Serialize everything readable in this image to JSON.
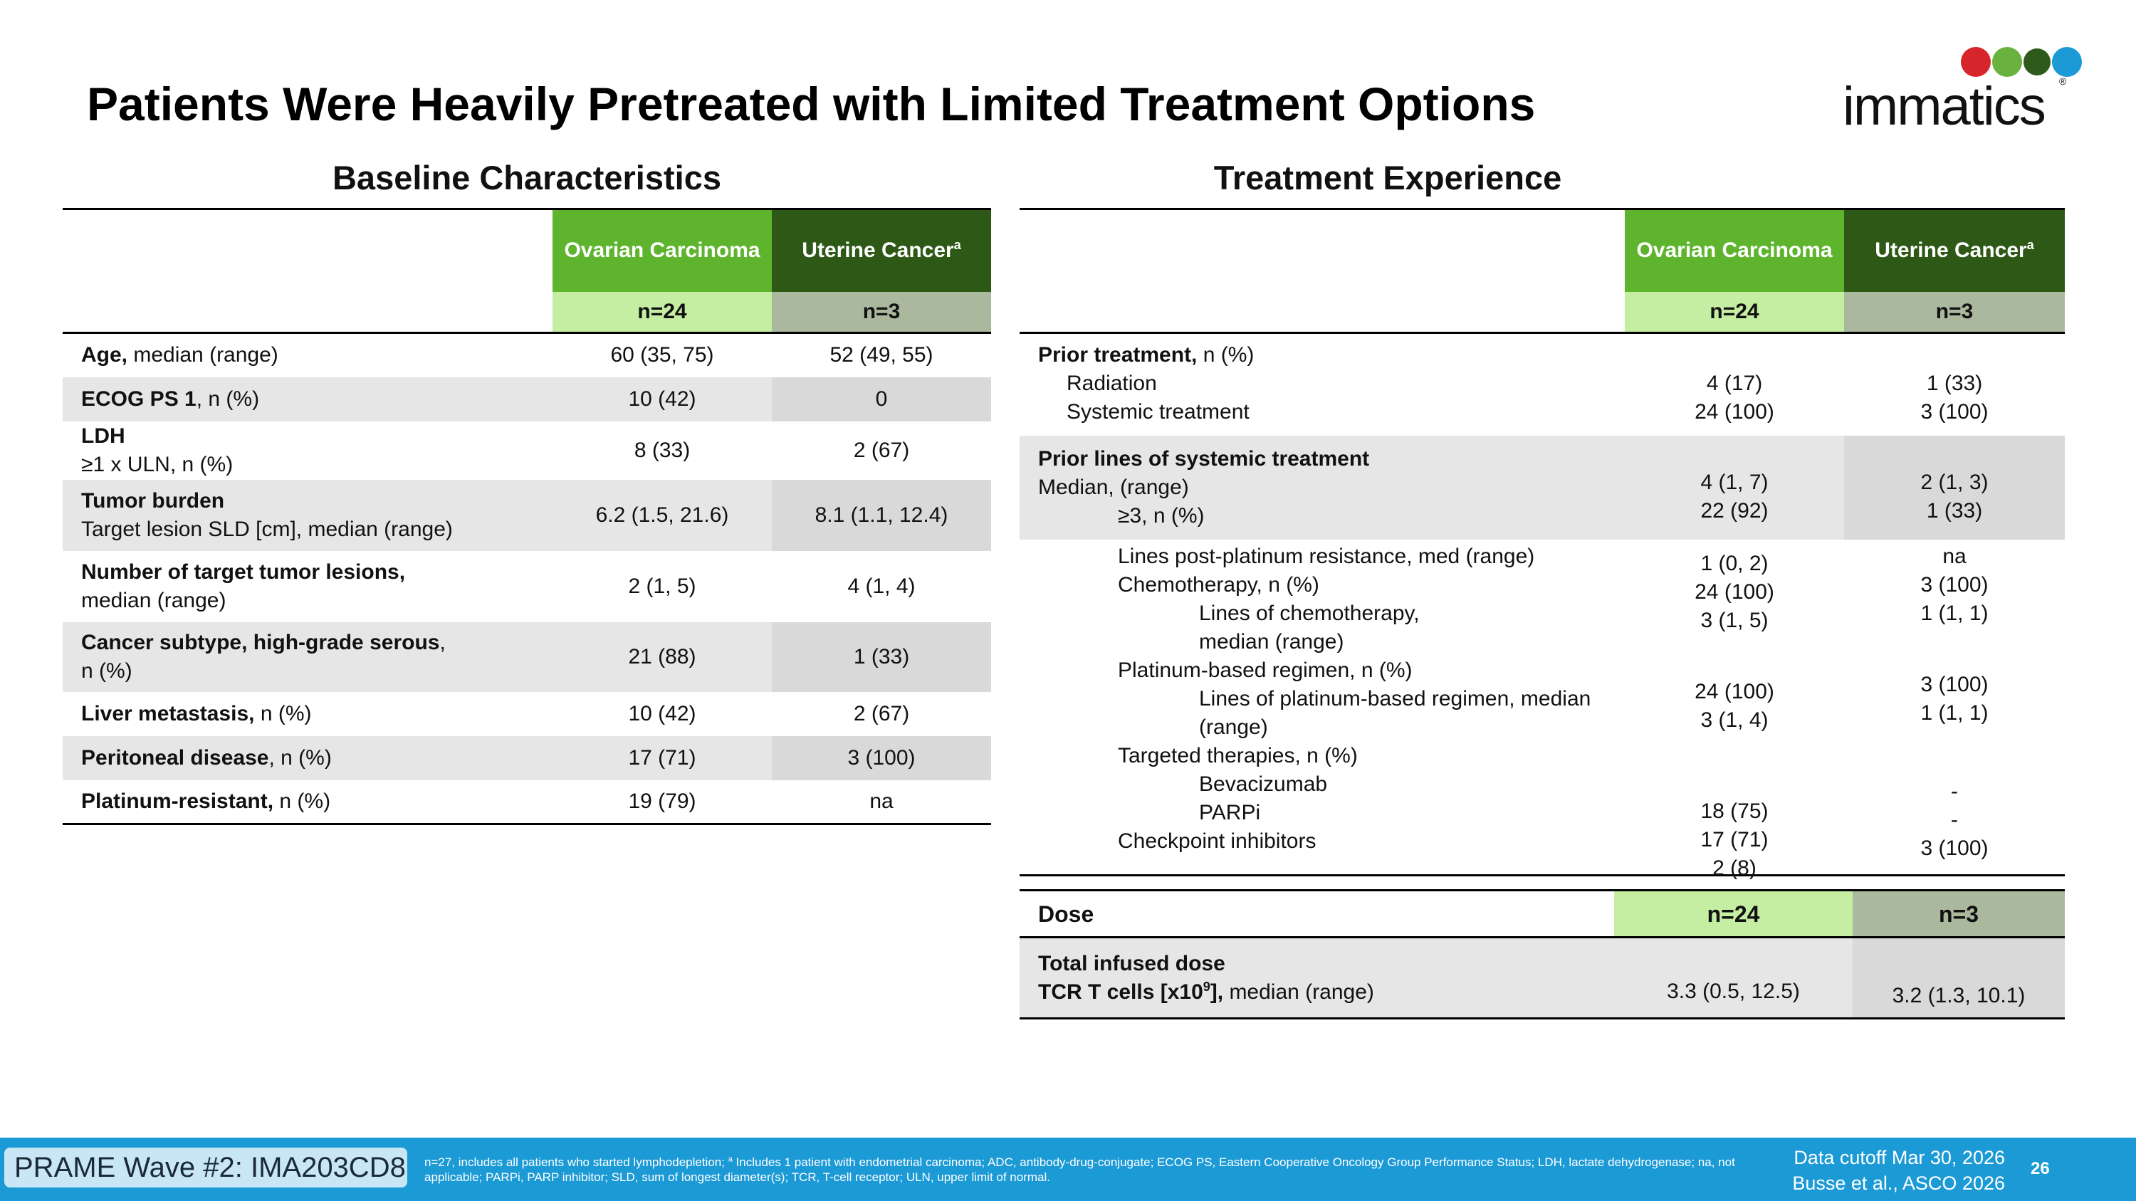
{
  "slide": {
    "title": "Patients Were Heavily Pretreated with Limited Treatment Options",
    "logo_text": "immatics",
    "logo_reg": "®",
    "logo_dot_colors": [
      "#d7262b",
      "#68b23d",
      "#2d5a1b",
      "#1c9ad6"
    ]
  },
  "baseline": {
    "title": "Baseline Characteristics",
    "col1_header": "Ovarian Carcinoma",
    "col2_header": "Uterine Cancer",
    "col2_sup": "a",
    "col1_n": "n=24",
    "col2_n": "n=3",
    "rows": [
      {
        "label": "Age,",
        "label_rest": " median (range)",
        "ov": "60 (35, 75)",
        "ut": "52 (49, 55)"
      },
      {
        "label": "ECOG PS 1",
        "label_rest": ", n (%)",
        "ov": "10 (42)",
        "ut": "0"
      },
      {
        "label": "LDH",
        "label_line2": "≥1 x ULN, n (%)",
        "ov": "8 (33)",
        "ut": "2 (67)"
      },
      {
        "label": "Tumor burden",
        "label_line2": "Target lesion SLD [cm], median (range)",
        "ov": "6.2 (1.5, 21.6)",
        "ut": "8.1 (1.1, 12.4)"
      },
      {
        "label": "Number of target tumor lesions,",
        "label_line2": "median (range)",
        "ov": "2 (1, 5)",
        "ut": "4 (1, 4)"
      },
      {
        "label": "Cancer subtype, high-grade serous",
        "label_rest": ",",
        "label_line2": "n (%)",
        "ov": "21 (88)",
        "ut": "1 (33)"
      },
      {
        "label": "Liver metastasis,",
        "label_rest": " n (%)",
        "ov": "10 (42)",
        "ut": "2 (67)"
      },
      {
        "label": "Peritoneal disease",
        "label_rest": ", n (%)",
        "ov": "17 (71)",
        "ut": "3 (100)"
      },
      {
        "label": "Platinum-resistant,",
        "label_rest": " n (%)",
        "ov": "19 (79)",
        "ut": "na"
      }
    ]
  },
  "treatment": {
    "title": "Treatment Experience",
    "col1_header": "Ovarian Carcinoma",
    "col2_header": "Uterine Cancer",
    "col2_sup": "a",
    "col1_n": "n=24",
    "col2_n": "n=3",
    "prior": {
      "label": "Prior treatment,",
      "label_rest": " n (%)",
      "items": [
        "Radiation",
        "Systemic treatment"
      ],
      "ov": [
        "4 (17)",
        "24 (100)"
      ],
      "ut": [
        "1 (33)",
        "3 (100)"
      ]
    },
    "lines": {
      "label": "Prior lines of systemic treatment",
      "items": [
        "Median, (range)",
        "≥3, n (%)"
      ],
      "ov": [
        "4 (1, 7)",
        "22 (92)"
      ],
      "ut": [
        "2 (1, 3)",
        "1 (33)"
      ]
    },
    "details": {
      "items": [
        "Lines post-platinum resistance, med (range)",
        "Chemotherapy, n (%)",
        "Lines of chemotherapy,",
        "median (range)",
        "Platinum-based regimen, n (%)",
        "Lines of platinum-based regimen, median",
        "(range)",
        "Targeted therapies, n (%)",
        "Bevacizumab",
        "PARPi",
        "Checkpoint inhibitors"
      ],
      "ov": [
        "1 (0, 2)",
        "24 (100)",
        "3 (1, 5)",
        "24 (100)",
        "3 (1, 4)",
        "18 (75)",
        "17 (71)",
        "2 (8)"
      ],
      "ut": [
        "na",
        "3 (100)",
        "1 (1, 1)",
        "3 (100)",
        "1 (1, 1)",
        "-",
        "-",
        "3 (100)"
      ]
    },
    "dose": {
      "label": "Dose",
      "col1_n": "n=24",
      "col2_n": "n=3",
      "row_label1": "Total infused dose",
      "row_label2a": "TCR T cells [x10",
      "row_label2_sup": "9",
      "row_label2b": "],",
      "row_label2_rest": " median (range)",
      "ov": "3.3 (0.5, 12.5)",
      "ut": "3.2 (1.3, 10.1)"
    }
  },
  "footer": {
    "badge": "PRAME Wave #2: IMA203CD8",
    "note_part1": "n=27, includes all patients who started lymphodepletion; ",
    "note_sup": "a",
    "note_part2": " Includes 1 patient with endometrial carcinoma; ADC, antibody-drug-conjugate; ECOG PS, Eastern Cooperative Oncology Group Performance Status; LDH, lactate dehydrogenase; na, not applicable; PARPi, PARP inhibitor; SLD, sum of longest diameter(s); TCR, T-cell receptor; ULN, upper limit of normal.",
    "cutoff": "Data cutoff Mar 30, 2026",
    "citation": "Busse et al., ASCO 2026",
    "page": "26"
  }
}
